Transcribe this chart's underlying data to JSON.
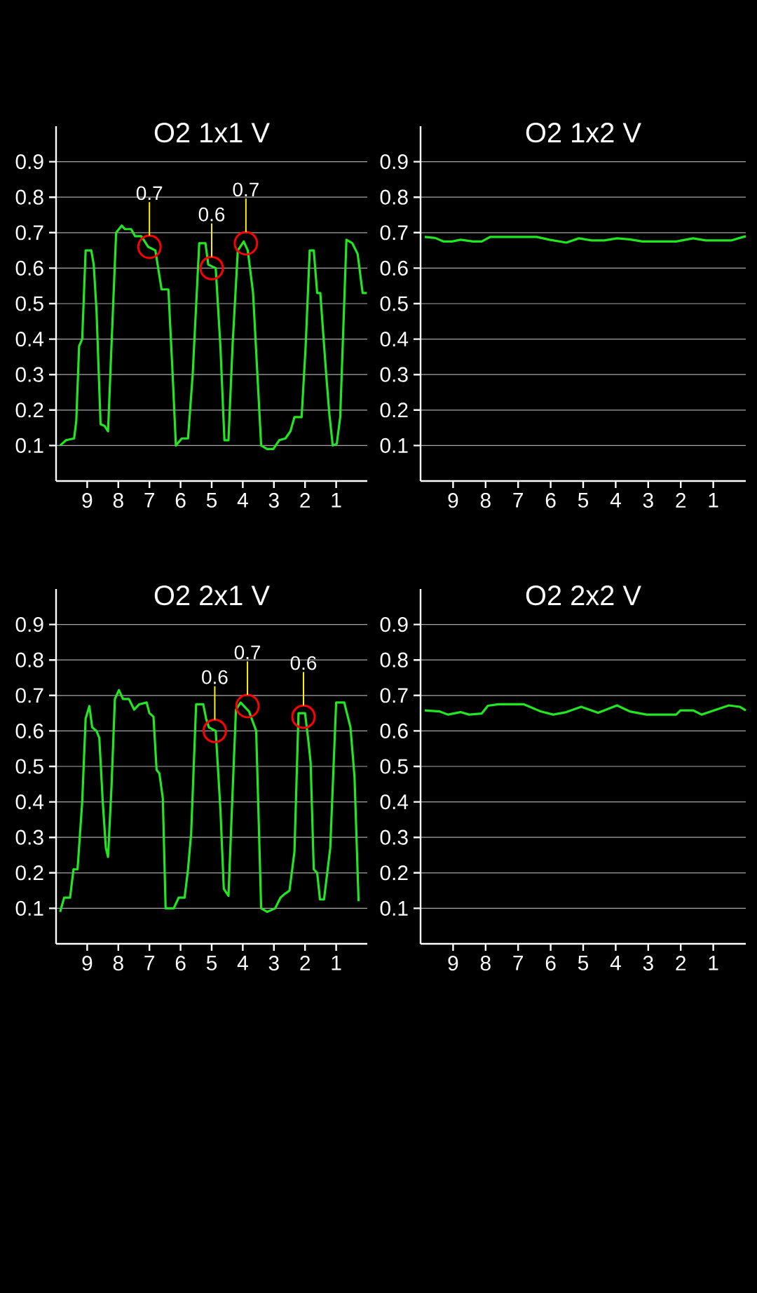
{
  "chart_data": [
    {
      "type": "line",
      "title": "O2 1x1 V",
      "color": "#22e622",
      "xlim": [
        10,
        0
      ],
      "ylim": [
        0,
        1
      ],
      "xticks": [
        9,
        8,
        7,
        6,
        5,
        4,
        3,
        2,
        1
      ],
      "yticks": [
        0.1,
        0.2,
        0.3,
        0.4,
        0.5,
        0.6,
        0.7,
        0.8,
        0.9
      ],
      "grid": "y",
      "x": [
        9.87,
        9.68,
        9.42,
        9.35,
        9.26,
        9.16,
        9.05,
        8.87,
        8.79,
        8.7,
        8.57,
        8.44,
        8.33,
        8.22,
        8.07,
        7.89,
        7.79,
        7.59,
        7.46,
        7.26,
        7.04,
        6.81,
        6.61,
        6.39,
        6.26,
        6.15,
        5.96,
        5.76,
        5.61,
        5.4,
        5.2,
        5.11,
        4.87,
        4.72,
        4.59,
        4.46,
        4.33,
        4.16,
        3.97,
        3.84,
        3.67,
        3.41,
        3.22,
        3.02,
        2.83,
        2.63,
        2.47,
        2.34,
        2.11,
        1.98,
        1.85,
        1.72,
        1.61,
        1.51,
        1.32,
        1.22,
        1.11,
        0.98,
        0.87,
        0.67,
        0.48,
        0.31,
        0.15,
        0.02
      ],
      "values": [
        0.1,
        0.115,
        0.12,
        0.17,
        0.38,
        0.4,
        0.65,
        0.65,
        0.61,
        0.48,
        0.16,
        0.155,
        0.14,
        0.38,
        0.7,
        0.72,
        0.71,
        0.71,
        0.69,
        0.69,
        0.66,
        0.65,
        0.54,
        0.54,
        0.31,
        0.1,
        0.12,
        0.12,
        0.3,
        0.67,
        0.67,
        0.61,
        0.6,
        0.38,
        0.115,
        0.115,
        0.38,
        0.65,
        0.675,
        0.65,
        0.53,
        0.1,
        0.09,
        0.09,
        0.115,
        0.12,
        0.14,
        0.18,
        0.18,
        0.38,
        0.65,
        0.65,
        0.53,
        0.53,
        0.3,
        0.19,
        0.1,
        0.105,
        0.18,
        0.68,
        0.67,
        0.64,
        0.53,
        0.53
      ],
      "annotations": [
        {
          "text": "0.7",
          "x": 7.0,
          "y": 0.66
        },
        {
          "text": "0.6",
          "x": 5.0,
          "y": 0.6
        },
        {
          "text": "0.7",
          "x": 3.9,
          "y": 0.67
        }
      ]
    },
    {
      "type": "line",
      "title": "O2 1x2 V",
      "color": "#22e622",
      "xlim": [
        10,
        0
      ],
      "ylim": [
        0,
        1
      ],
      "xticks": [
        9,
        8,
        7,
        6,
        5,
        4,
        3,
        2,
        1
      ],
      "yticks": [
        0.1,
        0.2,
        0.3,
        0.4,
        0.5,
        0.6,
        0.7,
        0.8,
        0.9
      ],
      "grid": "y",
      "x": [
        9.87,
        9.55,
        9.29,
        9.03,
        8.77,
        8.38,
        8.12,
        7.86,
        7.34,
        6.43,
        6.04,
        5.52,
        5.13,
        4.74,
        4.35,
        3.96,
        3.57,
        3.18,
        2.79,
        2.14,
        1.62,
        1.23,
        0.84,
        0.45,
        0.19,
        0.0
      ],
      "values": [
        0.688,
        0.685,
        0.675,
        0.675,
        0.68,
        0.675,
        0.675,
        0.688,
        0.688,
        0.688,
        0.68,
        0.672,
        0.684,
        0.678,
        0.678,
        0.684,
        0.681,
        0.675,
        0.675,
        0.675,
        0.684,
        0.678,
        0.678,
        0.678,
        0.685,
        0.69
      ]
    },
    {
      "type": "line",
      "title": "O2 2x1 V",
      "color": "#22e622",
      "xlim": [
        10,
        0
      ],
      "ylim": [
        0,
        1
      ],
      "xticks": [
        9,
        8,
        7,
        6,
        5,
        4,
        3,
        2,
        1
      ],
      "yticks": [
        0.1,
        0.2,
        0.3,
        0.4,
        0.5,
        0.6,
        0.7,
        0.8,
        0.9
      ],
      "grid": "y",
      "x": [
        9.87,
        9.74,
        9.55,
        9.44,
        9.31,
        9.16,
        9.05,
        8.93,
        8.84,
        8.7,
        8.61,
        8.5,
        8.4,
        8.33,
        8.22,
        8.11,
        7.98,
        7.85,
        7.66,
        7.49,
        7.33,
        7.09,
        7.0,
        6.87,
        6.77,
        6.68,
        6.57,
        6.48,
        6.22,
        6.06,
        5.87,
        5.76,
        5.66,
        5.5,
        5.27,
        5.18,
        5.09,
        4.87,
        4.72,
        4.61,
        4.46,
        4.35,
        4.22,
        4.07,
        3.8,
        3.57,
        3.41,
        3.22,
        2.96,
        2.79,
        2.66,
        2.5,
        2.34,
        2.21,
        2.0,
        1.89,
        1.82,
        1.72,
        1.61,
        1.52,
        1.39,
        1.19,
        1.0,
        0.74,
        0.54,
        0.41,
        0.28
      ],
      "values": [
        0.09,
        0.13,
        0.13,
        0.21,
        0.21,
        0.4,
        0.635,
        0.67,
        0.61,
        0.6,
        0.58,
        0.4,
        0.27,
        0.245,
        0.44,
        0.69,
        0.715,
        0.69,
        0.69,
        0.66,
        0.675,
        0.68,
        0.65,
        0.64,
        0.49,
        0.48,
        0.41,
        0.1,
        0.1,
        0.13,
        0.13,
        0.21,
        0.31,
        0.675,
        0.675,
        0.635,
        0.61,
        0.6,
        0.38,
        0.155,
        0.135,
        0.38,
        0.66,
        0.68,
        0.655,
        0.6,
        0.1,
        0.09,
        0.1,
        0.13,
        0.14,
        0.15,
        0.26,
        0.65,
        0.65,
        0.57,
        0.51,
        0.21,
        0.2,
        0.125,
        0.125,
        0.27,
        0.68,
        0.68,
        0.61,
        0.47,
        0.12
      ],
      "annotations": [
        {
          "text": "0.6",
          "x": 4.9,
          "y": 0.6
        },
        {
          "text": "0.7",
          "x": 3.85,
          "y": 0.67
        },
        {
          "text": "0.6",
          "x": 2.05,
          "y": 0.64
        }
      ]
    },
    {
      "type": "line",
      "title": "O2 2x2 V",
      "color": "#22e622",
      "xlim": [
        10,
        0
      ],
      "ylim": [
        0,
        1
      ],
      "xticks": [
        9,
        8,
        7,
        6,
        5,
        4,
        3,
        2,
        1
      ],
      "yticks": [
        0.1,
        0.2,
        0.3,
        0.4,
        0.5,
        0.6,
        0.7,
        0.8,
        0.9
      ],
      "grid": "y",
      "x": [
        9.87,
        9.42,
        9.16,
        8.77,
        8.51,
        8.12,
        7.93,
        7.61,
        6.82,
        6.31,
        5.92,
        5.52,
        5.06,
        4.54,
        3.96,
        3.57,
        3.05,
        2.14,
        2.01,
        1.62,
        1.36,
        0.84,
        0.52,
        0.19,
        0.0
      ],
      "values": [
        0.658,
        0.655,
        0.646,
        0.653,
        0.646,
        0.649,
        0.671,
        0.675,
        0.675,
        0.655,
        0.646,
        0.653,
        0.668,
        0.651,
        0.672,
        0.655,
        0.646,
        0.646,
        0.658,
        0.658,
        0.646,
        0.662,
        0.672,
        0.668,
        0.658
      ]
    }
  ]
}
